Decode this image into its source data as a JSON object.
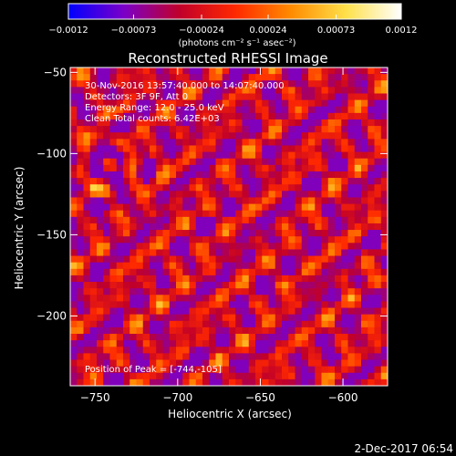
{
  "chart_data": {
    "type": "heatmap",
    "title": "Reconstructed RHESSI Image",
    "xlabel": "Heliocentric X (arcsec)",
    "ylabel": "Heliocentric Y (arcsec)",
    "xlim": [
      -765,
      -573
    ],
    "ylim": [
      -243,
      -47
    ],
    "x_ticks": [
      -750,
      -700,
      -650,
      -600
    ],
    "x_tick_labels": [
      "−750",
      "−700",
      "−650",
      "−600"
    ],
    "y_ticks": [
      -50,
      -100,
      -150,
      -200
    ],
    "y_tick_labels": [
      "−50",
      "−100",
      "−150",
      "−200"
    ],
    "colorbar": {
      "range": [
        -0.0012,
        0.0012
      ],
      "ticks": [
        -0.0012,
        -0.00073,
        -0.00024,
        0.00024,
        0.00073,
        0.0012
      ],
      "tick_labels": [
        "−0.0012",
        "−0.00073",
        "−0.00024",
        "0.00024",
        "0.00073",
        "0.0012"
      ],
      "unit_label": "(photons cm⁻² s⁻¹ asec⁻²)",
      "colors": [
        "#0000ff",
        "#7b00c8",
        "#c0002a",
        "#ff2800",
        "#ff8a00",
        "#ffe04a",
        "#ffffff"
      ]
    },
    "annotations": {
      "time_range": "30-Nov-2016 13:57:40.000 to 14:07:40.000",
      "detectors": "Detectors: 3F 9F, Att 0",
      "energy": "Energy Range: 12.0 - 25.0 keV",
      "clean": "Clean    Total counts: 6.42E+03",
      "peak": "Position of Peak = [-744,-105]"
    },
    "peak_position": [
      -744,
      -105
    ],
    "grid_shape": [
      49,
      48
    ]
  },
  "footer": {
    "timestamp": "2-Dec-2017 06:54"
  }
}
